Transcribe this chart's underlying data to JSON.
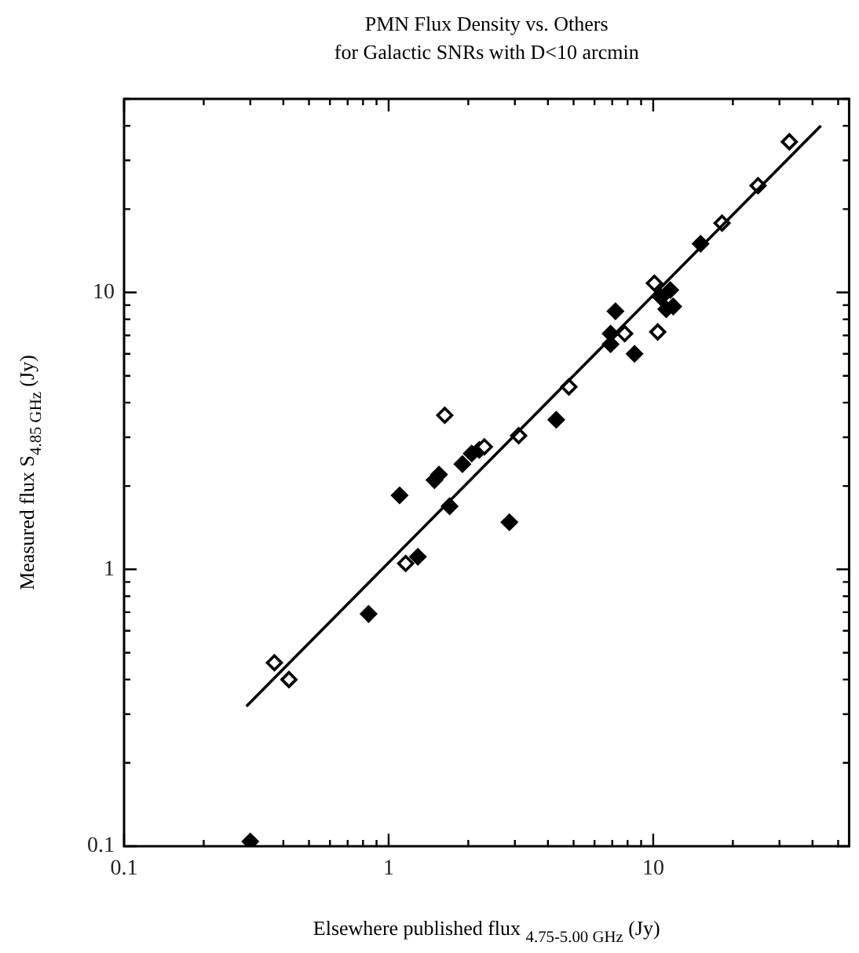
{
  "chart_data": {
    "type": "scatter",
    "title": "PMN Flux Density vs. Others",
    "subtitle": "for Galactic SNRs with D<10 arcmin",
    "xlabel": "Elsewhere published flux $_{4.75-5.00 GHz}$ (Jy)",
    "ylabel": "Measured flux S$_{4.85 GHz}$ (Jy)",
    "log": "xy",
    "grid": false,
    "legend": false,
    "marker": "diamond",
    "xlim": [
      0.1,
      55
    ],
    "ylim": [
      0.1,
      50
    ],
    "xticks": [
      0.1,
      {
        "value": 0.2,
        "label": null
      },
      {
        "value": 0.3,
        "label": null
      },
      {
        "value": 0.4,
        "label": null
      },
      {
        "value": 0.5,
        "label": null
      },
      {
        "value": 0.6,
        "label": null
      },
      {
        "value": 0.7,
        "label": null
      },
      {
        "value": 0.8,
        "label": null
      },
      {
        "value": 0.9,
        "label": null
      },
      1,
      {
        "value": 2,
        "label": null
      },
      {
        "value": 3,
        "label": null
      },
      {
        "value": 4,
        "label": null
      },
      {
        "value": 5,
        "label": null
      },
      {
        "value": 6,
        "label": null
      },
      {
        "value": 7,
        "label": null
      },
      {
        "value": 8,
        "label": null
      },
      {
        "value": 9,
        "label": null
      },
      10,
      {
        "value": 20,
        "label": null
      },
      {
        "value": 30,
        "label": null
      },
      {
        "value": 40,
        "label": null
      },
      {
        "value": 50,
        "label": null
      }
    ],
    "yticks": [
      0.1,
      {
        "value": 0.2,
        "label": null
      },
      {
        "value": 0.3,
        "label": null
      },
      {
        "value": 0.4,
        "label": null
      },
      {
        "value": 0.5,
        "label": null
      },
      {
        "value": 0.6,
        "label": null
      },
      {
        "value": 0.7,
        "label": null
      },
      {
        "value": 0.8,
        "label": null
      },
      {
        "value": 0.9,
        "label": null
      },
      1,
      {
        "value": 2,
        "label": null
      },
      {
        "value": 3,
        "label": null
      },
      {
        "value": 4,
        "label": null
      },
      {
        "value": 5,
        "label": null
      },
      {
        "value": 6,
        "label": null
      },
      {
        "value": 7,
        "label": null
      },
      {
        "value": 8,
        "label": null
      },
      {
        "value": 9,
        "label": null
      },
      10,
      {
        "value": 20,
        "label": null
      },
      {
        "value": 30,
        "label": null
      },
      {
        "value": 40,
        "label": null
      },
      {
        "value": 50,
        "label": null
      }
    ],
    "series": [
      {
        "color": "#000000",
        "x": [
          0.3,
          0.84,
          1.1,
          1.29,
          1.49,
          1.55,
          1.7,
          1.9,
          2.06,
          2.2,
          2.86,
          4.3,
          7.2,
          6.9,
          6.9,
          8.5,
          10.7,
          11.6,
          11.9,
          11.2,
          15.1
        ],
        "values": [
          0.104,
          0.69,
          1.85,
          1.11,
          2.1,
          2.2,
          1.69,
          2.4,
          2.62,
          2.7,
          1.48,
          3.47,
          8.55,
          7.1,
          6.5,
          6.0,
          9.6,
          10.2,
          8.9,
          8.7,
          15.0
        ]
      },
      {
        "color": "#000000",
        "x": [
          0.37,
          0.42,
          1.16,
          1.63,
          2.3,
          3.1,
          4.8,
          7.8,
          10.4,
          10.1,
          18.2,
          24.9,
          32.7
        ],
        "values": [
          0.46,
          0.4,
          1.05,
          3.6,
          2.77,
          3.04,
          4.56,
          7.1,
          7.2,
          10.8,
          17.8,
          24.3,
          35
        ]
      },
      {
        "type": "line",
        "marker": "none",
        "color": "#000000",
        "x": [
          0.29,
          43
        ],
        "values": [
          0.32,
          40
        ]
      }
    ]
  }
}
